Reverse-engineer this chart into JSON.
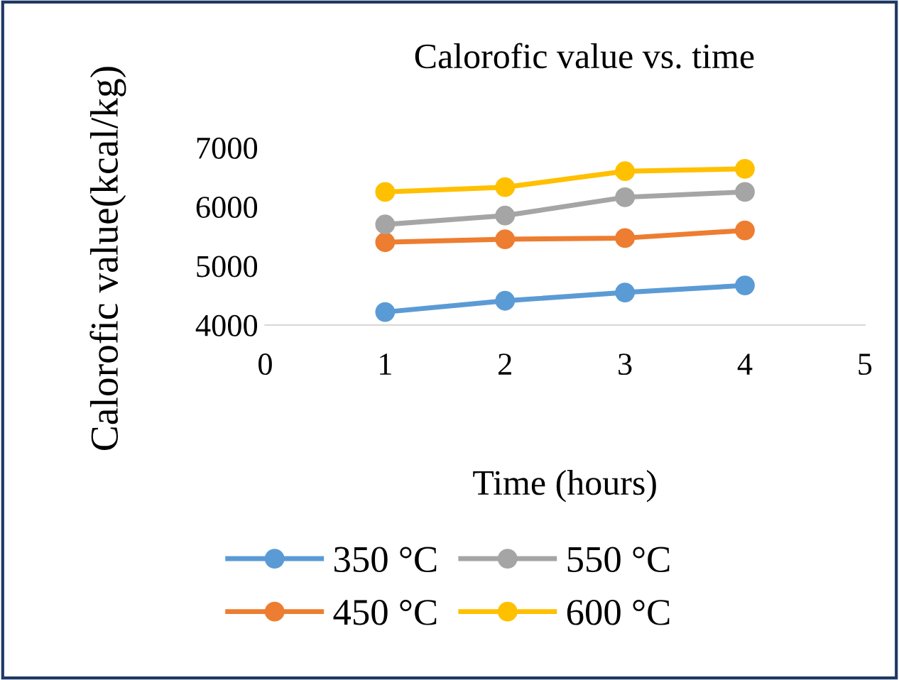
{
  "chart_data": {
    "type": "line",
    "title": "Calorofic value vs. time",
    "xlabel": "Time (hours)",
    "ylabel": "Calorofic value(kcal/kg)",
    "x": [
      1,
      2,
      3,
      4
    ],
    "xlim": [
      0,
      5
    ],
    "xticks": [
      0,
      1,
      2,
      3,
      4,
      5
    ],
    "ylim": [
      4000,
      7000
    ],
    "yticks": [
      4000,
      5000,
      6000,
      7000
    ],
    "marker": "circle",
    "grid": false,
    "legend": "bottom",
    "series": [
      {
        "name": "350 °C",
        "color": "#5b9bd5",
        "values": [
          4220,
          4410,
          4550,
          4670
        ]
      },
      {
        "name": "450 °C",
        "color": "#ed7d31",
        "values": [
          5400,
          5450,
          5470,
          5600
        ]
      },
      {
        "name": "550 °C",
        "color": "#a5a5a5",
        "values": [
          5700,
          5850,
          6160,
          6250
        ]
      },
      {
        "name": "600 °C",
        "color": "#ffc000",
        "values": [
          6250,
          6330,
          6600,
          6640
        ]
      }
    ]
  }
}
